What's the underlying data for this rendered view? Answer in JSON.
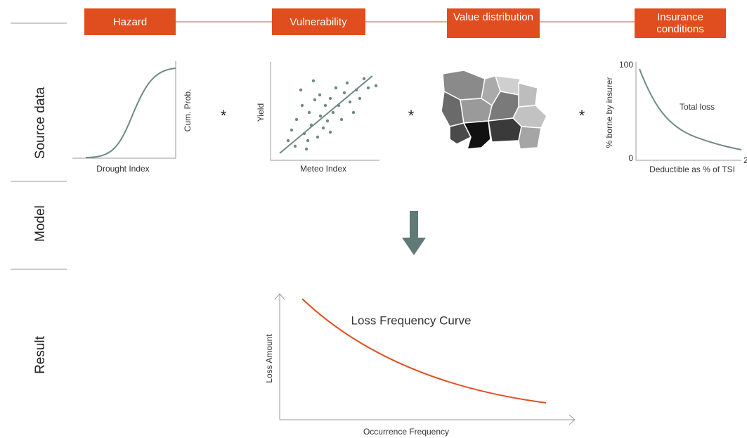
{
  "header": {
    "steps": [
      "Hazard",
      "Vulnerability",
      "Value distribution",
      "Insurance conditions"
    ]
  },
  "rows": [
    "Source data",
    "Model",
    "Result"
  ],
  "operators": [
    "*",
    "*",
    "*"
  ],
  "panels": {
    "hazard": {
      "x_label": "Drought Index",
      "y_label": "Cum. Prob."
    },
    "vulnerability": {
      "x_label": "Meteo Index",
      "y_label": "Yield"
    },
    "insurance": {
      "x_label": "Deductible as % of TSI",
      "y_label": "% borne by insurer",
      "annotation": "Total loss",
      "y_top": "100",
      "y_bottom": "0",
      "x_end": "2"
    }
  },
  "result": {
    "title": "Loss Frequency Curve",
    "x_label": "Occurrence Frequency",
    "y_label": "Loss Amount"
  }
}
